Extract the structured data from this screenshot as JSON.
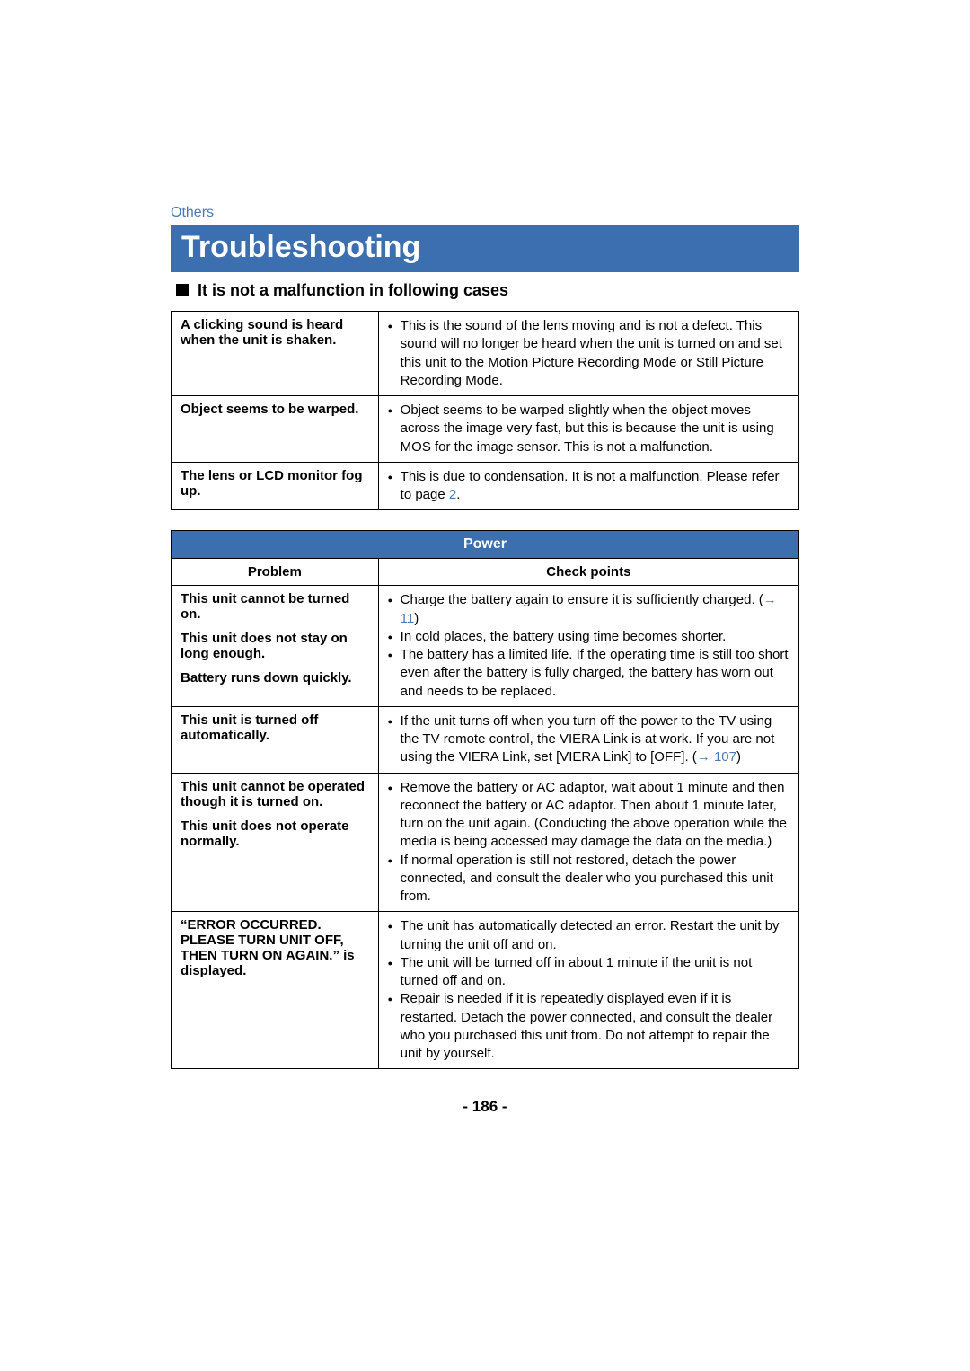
{
  "category": "Others",
  "title": "Troubleshooting",
  "subheading": "It is not a malfunction in following cases",
  "not_malfunction": [
    {
      "problem": "A clicking sound is heard when the unit is shaken.",
      "points": [
        "This is the sound of the lens moving and is not a defect. This sound will no longer be heard when the unit is turned on and set this unit to the Motion Picture Recording Mode or Still Picture Recording Mode."
      ]
    },
    {
      "problem": "Object seems to be warped.",
      "points": [
        "Object seems to be warped slightly when the object moves across the image very fast, but this is because the unit is using MOS for the image sensor. This is not a malfunction."
      ]
    },
    {
      "problem": "The lens or LCD monitor fog up.",
      "points_html": "This is due to condensation. It is not a malfunction. Please refer to page <span class=\"link\">2</span>."
    }
  ],
  "power": {
    "title": "Power",
    "headers": {
      "left": "Problem",
      "right": "Check points"
    },
    "rows": [
      {
        "problems": [
          "This unit cannot be turned on.",
          "This unit does not stay on long enough.",
          "Battery runs down quickly."
        ],
        "points_html": [
          "Charge the battery again to ensure it is sufficiently charged. (<span class=\"arrow\">→ 11</span>)",
          "In cold places, the battery using time becomes shorter.",
          "The battery has a limited life. If the operating time is still too short even after the battery is fully charged, the battery has worn out and needs to be replaced."
        ]
      },
      {
        "problems": [
          "This unit is turned off automatically."
        ],
        "points_html": [
          "If the unit turns off when you turn off the power to the TV using the TV remote control, the VIERA Link is at work. If you are not using the VIERA Link, set [VIERA Link] to [OFF]. (<span class=\"arrow\">→ 107</span>)"
        ]
      },
      {
        "problems": [
          "This unit cannot be operated though it is turned on.",
          "This unit does not operate normally."
        ],
        "points_html": [
          "Remove the battery or AC adaptor, wait about 1 minute and then reconnect the battery or AC adaptor. Then about 1 minute later, turn on the unit again. (Conducting the above operation while the media is being accessed may damage the data on the media.)",
          "If normal operation is still not restored, detach the power connected, and consult the dealer who you purchased this unit from."
        ]
      },
      {
        "problems": [
          "“ERROR OCCURRED. PLEASE TURN UNIT OFF, THEN TURN ON AGAIN.” is displayed."
        ],
        "points_html": [
          "The unit has automatically detected an error. Restart the unit by turning the unit off and on.",
          "The unit will be turned off in about 1 minute if the unit is not turned off and on.",
          "Repair is needed if it is repeatedly displayed even if it is restarted. Detach the power connected, and consult the dealer who you purchased this unit from. Do not attempt to repair the unit by yourself."
        ]
      }
    ]
  },
  "page_number": "- 186 -"
}
